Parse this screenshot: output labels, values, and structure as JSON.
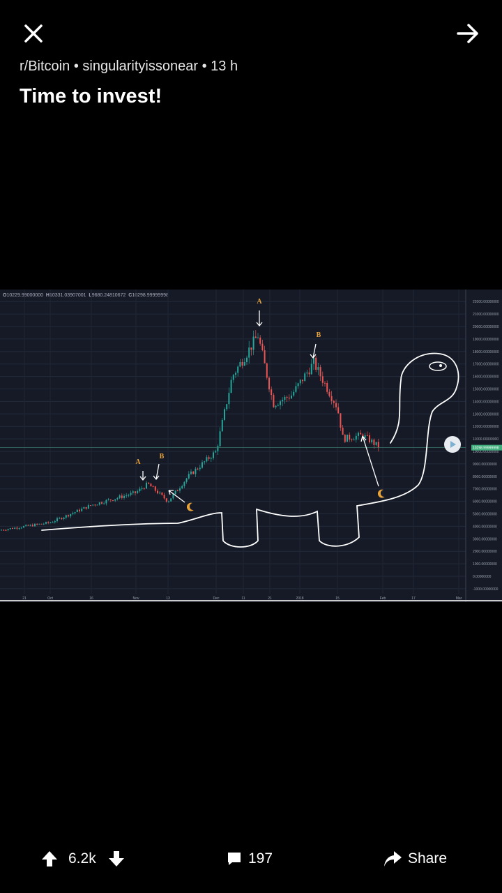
{
  "header": {
    "close_icon": "close-icon",
    "next_icon": "arrow-right-icon",
    "subreddit": "r/Bitcoin",
    "author": "singularityissonear",
    "age": "13 h",
    "separator": "•",
    "title": "Time to invest!"
  },
  "post_image": {
    "ohlc": {
      "o_label": "O",
      "o": "10229.99000000",
      "h_label": "H",
      "h": "10331.03907001",
      "l_label": "L",
      "l": "9680.24810672",
      "c_label": "C",
      "c": "10298.99999998"
    },
    "price_ticks": [
      "22000.00000000",
      "21000.00000000",
      "20000.00000000",
      "19000.00000000",
      "18000.00000000",
      "17000.00000000",
      "16000.00000000",
      "15000.00000000",
      "14000.00000000",
      "13000.00000000",
      "12000.00000000",
      "11000.00000000",
      "10000.00000000",
      "9000.00000000",
      "8000.00000000",
      "7000.00000000",
      "6000.00000000",
      "5000.00000000",
      "4000.00000000",
      "3000.00000000",
      "2000.00000000",
      "1000.00000000",
      "0.00000000",
      "-1000.00000000"
    ],
    "price_ticks_values": [
      22000,
      21000,
      20000,
      19000,
      18000,
      17000,
      16000,
      15000,
      14000,
      13000,
      12000,
      11000,
      10000,
      9000,
      8000,
      7000,
      6000,
      5000,
      4000,
      3000,
      2000,
      1000,
      0,
      -1000
    ],
    "current_price": "10298.99999998",
    "date_ticks": [
      "21",
      "Oct",
      "16",
      "Nov",
      "13",
      "Dec",
      "11",
      "21",
      "2018",
      "15",
      "Feb",
      "17",
      "Mar"
    ],
    "annotations": {
      "a1": "A",
      "b1": "B",
      "a2": "A",
      "b2": "B"
    },
    "colors": {
      "up": "#26a69a",
      "down": "#ef5350",
      "annotation": "#e8a33a",
      "drawing": "#ffffff",
      "background": "#151a26"
    },
    "chart_data": {
      "type": "candlestick",
      "x_ticks": [
        "21",
        "Oct",
        "16",
        "Nov",
        "13",
        "Dec",
        "11",
        "21",
        "2018",
        "15",
        "Feb",
        "17",
        "Mar"
      ],
      "ylim": [
        -1000,
        22500
      ],
      "close_path": [
        {
          "date": "Sep 21",
          "close": 3700
        },
        {
          "date": "Oct 1",
          "close": 4300
        },
        {
          "date": "Oct 16",
          "close": 5700
        },
        {
          "date": "Nov 1",
          "close": 6700
        },
        {
          "date": "Nov 8",
          "close": 7400
        },
        {
          "date": "Nov 13",
          "close": 6000
        },
        {
          "date": "Nov 20",
          "close": 8000
        },
        {
          "date": "Dec 1",
          "close": 10000
        },
        {
          "date": "Dec 7",
          "close": 16000
        },
        {
          "date": "Dec 17",
          "close": 19300
        },
        {
          "date": "Dec 22",
          "close": 13800
        },
        {
          "date": "Dec 28",
          "close": 14500
        },
        {
          "date": "Jan 6",
          "close": 17100
        },
        {
          "date": "Jan 15",
          "close": 13500
        },
        {
          "date": "Jan 17",
          "close": 11000
        },
        {
          "date": "Jan 25",
          "close": 11300
        },
        {
          "date": "Feb 1",
          "close": 10299
        }
      ]
    }
  },
  "footer": {
    "upvote_icon": "arrow-up-icon",
    "score": "6.2k",
    "downvote_icon": "arrow-down-icon",
    "comment_icon": "comment-icon",
    "comments": "197",
    "share_icon": "share-icon",
    "share_label": "Share"
  }
}
